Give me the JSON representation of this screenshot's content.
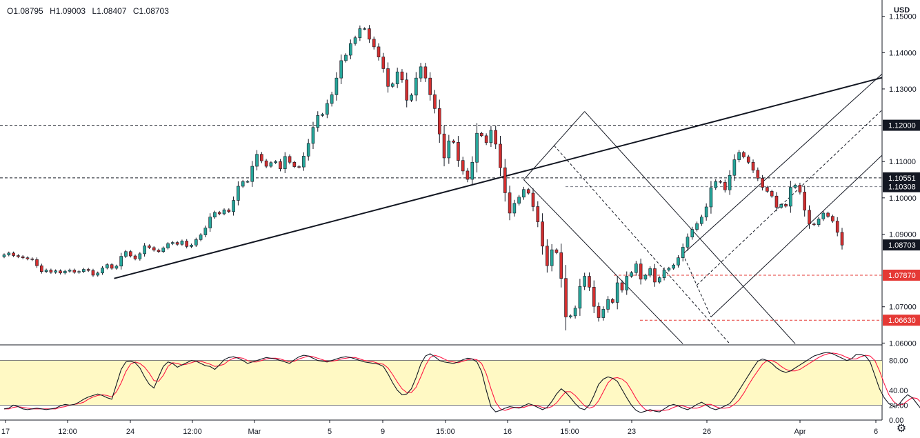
{
  "ohlc": {
    "open": "O1.08795",
    "high": "H1.09003",
    "low": "L1.08407",
    "close": "C1.08703"
  },
  "currency": "USD",
  "colors": {
    "up": "#26a69a",
    "down": "#d32f2f",
    "line": "#131722",
    "red_level": "#e53935",
    "stoch_k": "#131722",
    "stoch_d": "#ff1744",
    "band": "#fff9c4"
  },
  "chart_data": [
    {
      "type": "candlestick",
      "title": "",
      "ylim": [
        1.0595,
        1.1545
      ],
      "y_ticks": [
        "1.15000",
        "1.14000",
        "1.13000",
        "1.11000",
        "1.10000",
        "1.09000",
        "1.07000",
        "1.06000"
      ],
      "x_labels": [
        "17",
        "12:00",
        "24",
        "12:00",
        "Mar",
        "5",
        "9",
        "15:00",
        "16",
        "15:00",
        "23",
        "26",
        "Apr",
        "6"
      ],
      "price_labels": [
        {
          "text": "1.12000",
          "price": 1.12,
          "style": "dark"
        },
        {
          "text": "1.10551",
          "price": 1.10551,
          "style": "dark"
        },
        {
          "text": "1.10308",
          "price": 1.10308,
          "style": "dark"
        },
        {
          "text": "1.08703",
          "price": 1.08703,
          "style": "dark"
        },
        {
          "text": "1.07870",
          "price": 1.0787,
          "style": "red"
        },
        {
          "text": "1.06630",
          "price": 1.0663,
          "style": "red"
        }
      ],
      "horizontal_levels": [
        {
          "price": 1.12,
          "style": "dash-dark"
        },
        {
          "price": 1.10551,
          "style": "dash-dark"
        },
        {
          "price": 1.10308,
          "style": "dash-gray"
        },
        {
          "price": 1.0787,
          "style": "dash-red"
        },
        {
          "price": 1.0663,
          "style": "dash-red"
        }
      ],
      "closes": [
        1.0843,
        1.0848,
        1.0841,
        1.0838,
        1.0835,
        1.0832,
        1.083,
        1.0813,
        1.0797,
        1.0801,
        1.0795,
        1.0799,
        1.0793,
        1.0798,
        1.0801,
        1.0795,
        1.0797,
        1.0803,
        1.08,
        1.0787,
        1.0793,
        1.0807,
        1.0816,
        1.0806,
        1.0812,
        1.0839,
        1.0852,
        1.084,
        1.0832,
        1.0846,
        1.0868,
        1.0863,
        1.0856,
        1.0852,
        1.0862,
        1.0874,
        1.0877,
        1.0872,
        1.0881,
        1.0866,
        1.087,
        1.0885,
        1.0898,
        1.0917,
        1.0947,
        1.096,
        1.0956,
        1.0967,
        1.0962,
        1.0993,
        1.1032,
        1.1045,
        1.1045,
        1.1087,
        1.112,
        1.1102,
        1.1087,
        1.1097,
        1.11,
        1.108,
        1.1114,
        1.1098,
        1.1086,
        1.1085,
        1.1115,
        1.115,
        1.1194,
        1.1227,
        1.123,
        1.126,
        1.1284,
        1.133,
        1.1378,
        1.1393,
        1.1425,
        1.1441,
        1.1466,
        1.1466,
        1.1437,
        1.1416,
        1.1388,
        1.1356,
        1.1307,
        1.1314,
        1.1347,
        1.1325,
        1.1269,
        1.1283,
        1.133,
        1.1361,
        1.133,
        1.1284,
        1.1246,
        1.1176,
        1.111,
        1.1157,
        1.1153,
        1.1103,
        1.1074,
        1.1051,
        1.1098,
        1.1178,
        1.1171,
        1.1152,
        1.1186,
        1.1148,
        1.1083,
        1.1014,
        1.0958,
        1.0985,
        1.1002,
        1.1023,
        1.1013,
        1.0976,
        1.0934,
        1.0867,
        1.0813,
        1.0857,
        1.0849,
        1.0778,
        1.0672,
        1.0675,
        1.0696,
        1.0756,
        1.0784,
        1.0754,
        1.0701,
        1.067,
        1.0693,
        1.072,
        1.0712,
        1.0766,
        1.0746,
        1.0784,
        1.0794,
        1.0818,
        1.0776,
        1.0787,
        1.0805,
        1.0768,
        1.078,
        1.0801,
        1.0806,
        1.0815,
        1.0835,
        1.0864,
        1.0892,
        1.0913,
        1.0929,
        1.0947,
        1.0975,
        1.1028,
        1.1045,
        1.1043,
        1.1022,
        1.1062,
        1.1105,
        1.1125,
        1.1113,
        1.1098,
        1.1076,
        1.1054,
        1.1029,
        1.1018,
        1.1005,
        1.0974,
        1.0982,
        1.0977,
        1.1029,
        1.1035,
        1.1016,
        1.0966,
        1.0928,
        1.0926,
        1.0942,
        1.0958,
        1.0949,
        1.0936,
        1.0905,
        1.087
      ]
    },
    {
      "type": "line",
      "title": "",
      "ylim": [
        0,
        100
      ],
      "y_ticks": [
        "80.00",
        "40.00",
        "20.00",
        "0.00"
      ],
      "band": [
        20,
        80
      ],
      "series": [
        {
          "values": [
            15,
            16,
            20,
            18,
            15,
            14,
            15,
            16,
            15,
            14,
            15,
            16,
            19,
            21,
            20,
            21,
            24,
            28,
            31,
            33,
            35,
            33,
            30,
            28,
            48,
            68,
            78,
            79,
            77,
            70,
            58,
            48,
            43,
            58,
            72,
            78,
            76,
            71,
            74,
            77,
            80,
            79,
            76,
            73,
            72,
            68,
            74,
            81,
            84,
            85,
            83,
            80,
            76,
            78,
            80,
            82,
            84,
            83,
            82,
            80,
            78,
            76,
            81,
            85,
            87,
            86,
            83,
            80,
            79,
            78,
            80,
            82,
            84,
            85,
            84,
            82,
            80,
            78,
            77,
            76,
            75,
            72,
            62,
            50,
            40,
            34,
            35,
            42,
            57,
            75,
            86,
            89,
            85,
            80,
            78,
            77,
            76,
            78,
            81,
            83,
            82,
            78,
            65,
            40,
            18,
            11,
            13,
            16,
            18,
            17,
            16,
            19,
            22,
            20,
            17,
            14,
            17,
            25,
            35,
            42,
            37,
            30,
            22,
            16,
            14,
            20,
            33,
            48,
            55,
            58,
            56,
            52,
            41,
            30,
            20,
            13,
            10,
            12,
            14,
            12,
            11,
            15,
            19,
            21,
            19,
            16,
            14,
            17,
            21,
            24,
            20,
            16,
            14,
            16,
            19,
            22,
            30,
            40,
            50,
            60,
            70,
            79,
            82,
            80,
            76,
            70,
            66,
            64,
            66,
            70,
            74,
            78,
            82,
            86,
            88,
            90,
            91,
            89,
            86,
            83,
            80,
            82,
            88,
            88,
            86,
            78,
            60,
            42,
            30,
            22,
            18,
            20,
            28,
            34,
            30,
            22,
            14,
            13,
            16,
            21,
            22,
            17,
            13
          ]
        },
        {
          "values": [
            15,
            15,
            17,
            18,
            17,
            16,
            15,
            15,
            15,
            15,
            15,
            15,
            17,
            18,
            20,
            21,
            22,
            24,
            28,
            31,
            33,
            34,
            33,
            31,
            38,
            50,
            65,
            75,
            78,
            76,
            71,
            63,
            53,
            52,
            60,
            72,
            77,
            76,
            74,
            75,
            77,
            79,
            79,
            77,
            75,
            72,
            73,
            75,
            80,
            83,
            84,
            83,
            80,
            78,
            78,
            80,
            82,
            83,
            83,
            82,
            80,
            78,
            79,
            82,
            84,
            86,
            85,
            83,
            81,
            79,
            79,
            80,
            82,
            83,
            84,
            84,
            82,
            80,
            79,
            78,
            76,
            75,
            70,
            61,
            51,
            42,
            37,
            37,
            44,
            58,
            73,
            84,
            87,
            85,
            82,
            79,
            78,
            77,
            79,
            81,
            82,
            81,
            76,
            62,
            42,
            24,
            15,
            13,
            15,
            17,
            17,
            17,
            19,
            20,
            19,
            17,
            16,
            18,
            23,
            31,
            38,
            38,
            33,
            26,
            19,
            16,
            18,
            26,
            38,
            50,
            56,
            57,
            55,
            50,
            40,
            29,
            20,
            14,
            12,
            13,
            13,
            13,
            14,
            17,
            19,
            19,
            17,
            16,
            16,
            18,
            21,
            21,
            18,
            16,
            16,
            17,
            21,
            27,
            36,
            47,
            57,
            66,
            75,
            80,
            80,
            77,
            72,
            68,
            66,
            66,
            68,
            72,
            76,
            80,
            84,
            87,
            89,
            90,
            89,
            87,
            84,
            82,
            82,
            85,
            87,
            86,
            80,
            66,
            49,
            34,
            25,
            20,
            21,
            26,
            30,
            29,
            23,
            17,
            14,
            15,
            19,
            21,
            18
          ]
        }
      ]
    }
  ]
}
